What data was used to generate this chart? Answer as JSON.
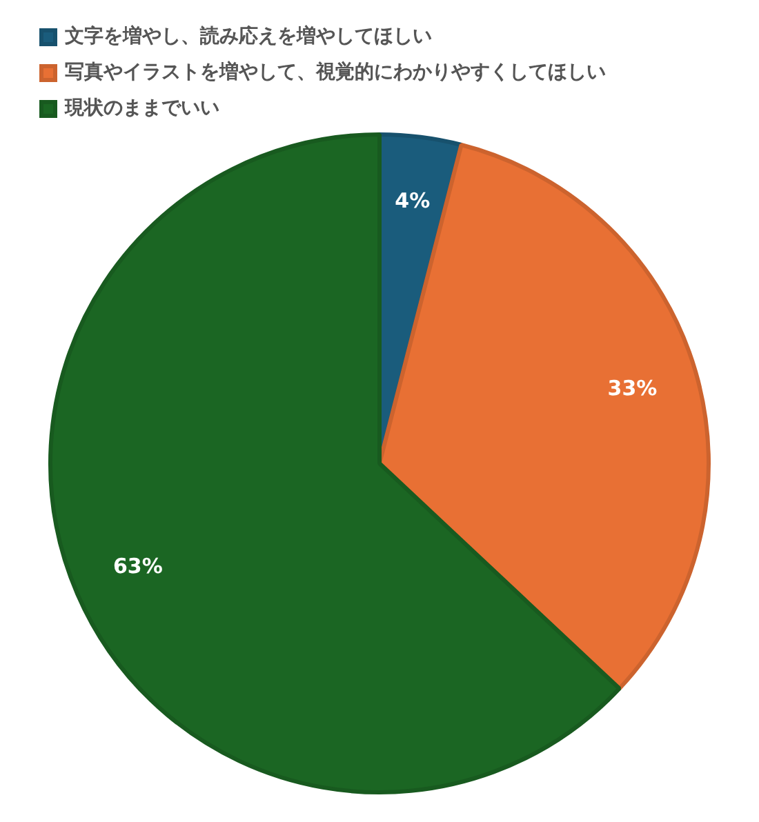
{
  "chart_data": {
    "type": "pie",
    "categories": [
      "文字を増やし、読み応えを増やしてほしい",
      "写真やイラストを増やして、視覚的にわかりやすくしてほしい",
      "現状のままでいい"
    ],
    "values": [
      4,
      33,
      63
    ],
    "colors": [
      "#1a5c7c",
      "#e87034",
      "#1b6623"
    ],
    "value_labels": [
      "4%",
      "33%",
      "63%"
    ],
    "legend": "top left"
  }
}
